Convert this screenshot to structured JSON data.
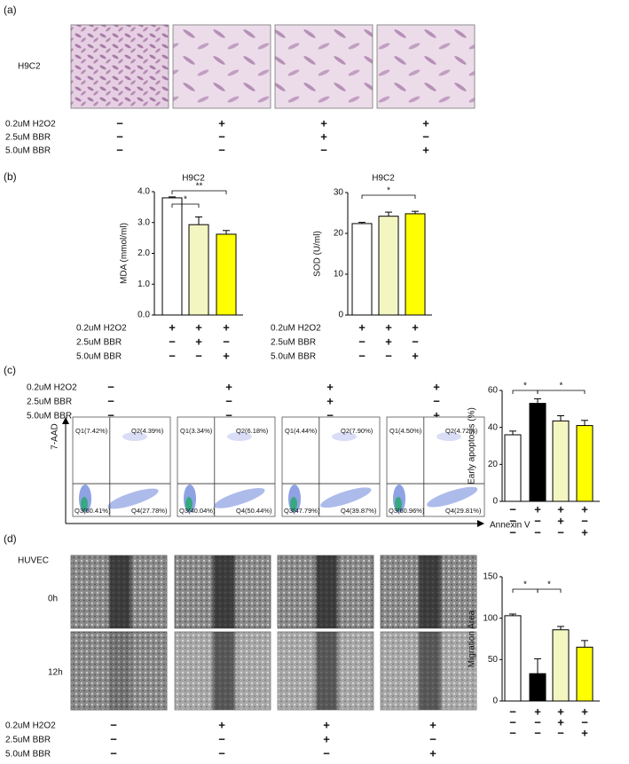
{
  "panel_a": {
    "label": "(a)",
    "cell_line": "H9C2",
    "treatments": {
      "labels": [
        "0.2uM H2O2",
        "2.5uM BBR",
        "5.0uM BBR"
      ],
      "signs": [
        [
          "−",
          "+",
          "+",
          "+"
        ],
        [
          "−",
          "−",
          "+",
          "−"
        ],
        [
          "−",
          "−",
          "−",
          "+"
        ]
      ]
    }
  },
  "panel_b": {
    "label": "(b)",
    "treatments": [
      {
        "labels": [
          "0.2uM H2O2",
          "2.5uM BBR",
          "5.0uM BBR"
        ],
        "signs": [
          [
            "+",
            "+",
            "+"
          ],
          [
            "−",
            "+",
            "−"
          ],
          [
            "−",
            "−",
            "+"
          ]
        ]
      },
      {
        "labels": [
          "0.2uM H2O2",
          "2.5uM BBR",
          "5.0uM BBR"
        ],
        "signs": [
          [
            "+",
            "+",
            "+"
          ],
          [
            "−",
            "+",
            "−"
          ],
          [
            "−",
            "−",
            "+"
          ]
        ]
      }
    ]
  },
  "panel_c": {
    "label": "(c)",
    "treatments": {
      "labels": [
        "0.2uM H2O2",
        "2.5uM BBR",
        "5.0uM BBR"
      ],
      "signs": [
        [
          "−",
          "+",
          "+",
          "+"
        ],
        [
          "−",
          "−",
          "+",
          "−"
        ],
        [
          "−",
          "−",
          "−",
          "+"
        ]
      ]
    },
    "flow": {
      "y_axis": "7-AAD",
      "x_axis": "Annexin V",
      "plots": [
        [
          "Q1(7.42%)",
          "Q2(4.39%)",
          "Q3(60.41%)",
          "Q4(27.78%)"
        ],
        [
          "Q1(3.34%)",
          "Q2(6.18%)",
          "Q3(40.04%)",
          "Q4(50.44%)"
        ],
        [
          "Q1(4.44%)",
          "Q2(7.90%)",
          "Q3(47.79%)",
          "Q4(39.87%)"
        ],
        [
          "Q1(4.50%)",
          "Q2(4.72%)",
          "Q3(60.96%)",
          "Q4(29.81%)"
        ]
      ]
    },
    "chart_signs": [
      [
        "−",
        "+",
        "+",
        "+"
      ],
      [
        "−",
        "−",
        "+",
        "−"
      ],
      [
        "−",
        "−",
        "−",
        "+"
      ]
    ]
  },
  "panel_d": {
    "label": "(d)",
    "cell_line": "HUVEC",
    "times": [
      "0h",
      "12h"
    ],
    "treatments": {
      "labels": [
        "0.2uM H2O2",
        "2.5uM BBR",
        "5.0uM BBR"
      ],
      "signs": [
        [
          "−",
          "+",
          "+",
          "+"
        ],
        [
          "−",
          "−",
          "+",
          "−"
        ],
        [
          "−",
          "−",
          "−",
          "+"
        ]
      ]
    },
    "chart_signs": [
      [
        "−",
        "+",
        "+",
        "+"
      ],
      [
        "−",
        "−",
        "+",
        "−"
      ],
      [
        "−",
        "−",
        "−",
        "+"
      ]
    ]
  },
  "chart_data": [
    {
      "type": "bar",
      "title": "H9C2",
      "y_label": "MDA (mmol/ml)",
      "values": [
        3.8,
        2.93,
        2.62
      ],
      "errors": [
        0.03,
        0.25,
        0.12
      ],
      "colors": [
        "#ffffff",
        "#f4f6c2",
        "#ffff00"
      ],
      "ylim": [
        0,
        4
      ],
      "yticks": [
        {
          "value": 0,
          "label": "0.0"
        },
        {
          "value": 1,
          "label": "1.0"
        },
        {
          "value": 2,
          "label": "2.0"
        },
        {
          "value": 3,
          "label": "3.0"
        },
        {
          "value": 4,
          "label": "4.0"
        }
      ],
      "annotations": [
        "*",
        "**"
      ]
    },
    {
      "type": "bar",
      "title": "H9C2",
      "y_label": "SOD (U/ml)",
      "values": [
        22.4,
        24.2,
        24.8
      ],
      "errors": [
        0.3,
        1.0,
        0.6
      ],
      "colors": [
        "#ffffff",
        "#f4f6c2",
        "#ffff00"
      ],
      "ylim": [
        0,
        30
      ],
      "yticks": [
        0,
        10,
        20,
        30
      ],
      "annotations": [
        "*"
      ]
    },
    {
      "type": "bar",
      "y_label": "Early apoptosis (%)",
      "values": [
        36,
        53,
        43.5,
        41
      ],
      "errors": [
        2,
        2.5,
        2.8,
        2.8
      ],
      "colors": [
        "#ffffff",
        "#000000",
        "#f4f6c2",
        "#ffff00"
      ],
      "ylim": [
        0,
        60
      ],
      "yticks": [
        0,
        20,
        40,
        60
      ],
      "annotations": [
        "*",
        "*"
      ]
    },
    {
      "type": "bar",
      "y_label": "Migration Area",
      "values": [
        103,
        33,
        86,
        65
      ],
      "errors": [
        2,
        18,
        4,
        8
      ],
      "colors": [
        "#ffffff",
        "#000000",
        "#f4f6c2",
        "#ffff00"
      ],
      "ylim": [
        0,
        150
      ],
      "yticks": [
        0,
        50,
        100,
        150
      ],
      "annotations": [
        "*",
        "*"
      ]
    }
  ]
}
